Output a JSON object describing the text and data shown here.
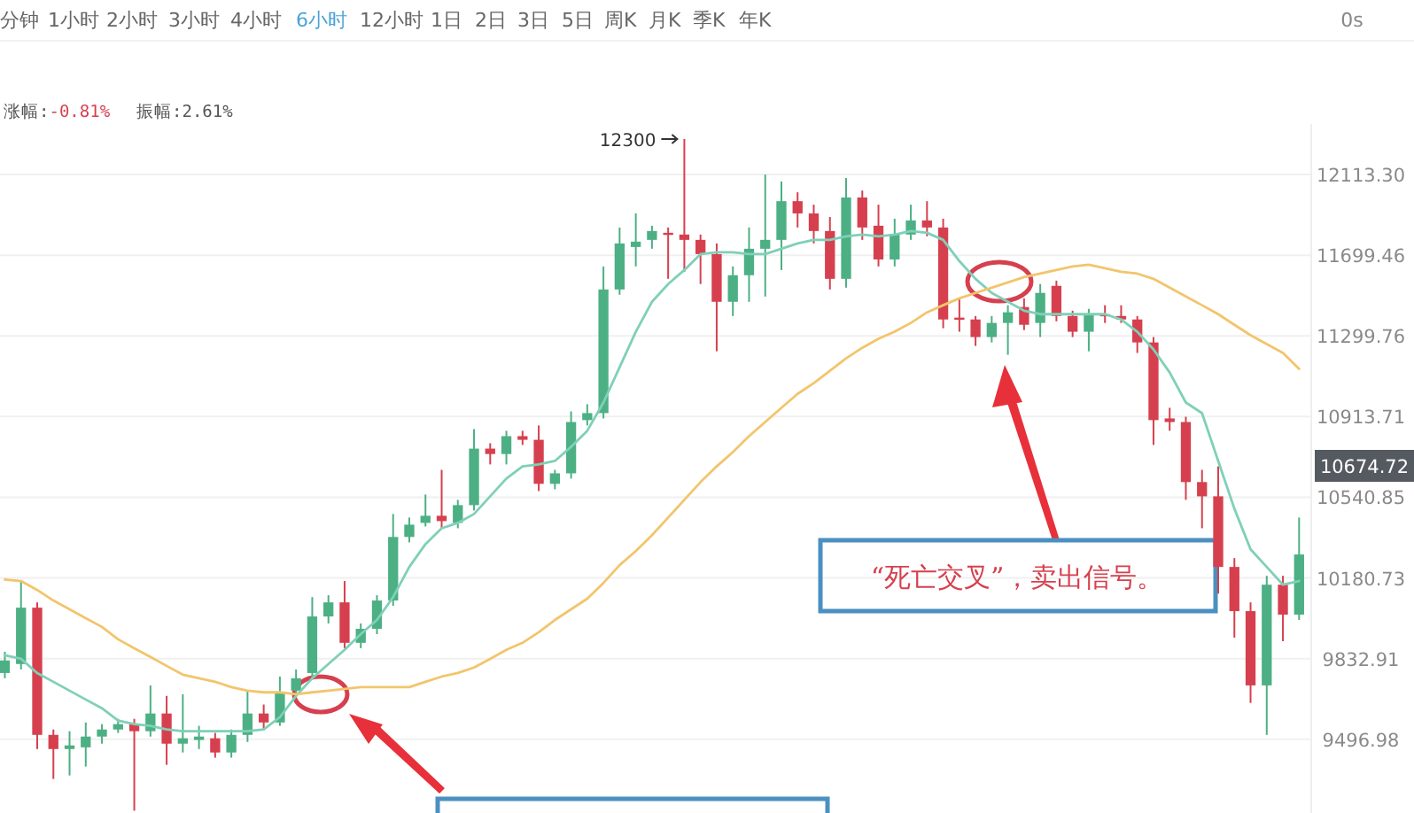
{
  "chart_data": {
    "type": "candlestick",
    "categories": [
      null,
      null,
      null,
      null,
      null,
      null,
      null,
      null,
      null,
      null,
      null,
      null,
      null,
      null,
      null,
      null,
      null,
      null,
      null,
      null,
      null,
      null,
      null,
      null,
      null,
      null,
      null,
      null,
      null,
      null,
      null,
      null,
      null,
      null,
      null,
      null,
      null,
      null,
      null,
      null,
      null,
      null,
      null,
      null,
      null,
      null,
      null,
      null,
      null,
      null,
      null,
      null,
      null,
      null,
      null,
      null,
      null,
      null,
      null,
      null,
      null,
      null,
      null,
      null,
      null,
      null,
      null,
      null,
      null,
      null,
      null,
      null,
      null,
      null,
      null,
      null,
      null,
      null,
      null,
      null,
      null
    ],
    "ohlc": [
      [
        9772,
        9862,
        9750,
        9825
      ],
      [
        9810,
        10167,
        9787,
        10051
      ],
      [
        10051,
        10074,
        9457,
        9515
      ],
      [
        9515,
        9537,
        9336,
        9457
      ],
      [
        9457,
        9530,
        9350,
        9472
      ],
      [
        9464,
        9566,
        9386,
        9508
      ],
      [
        9508,
        9559,
        9479,
        9537
      ],
      [
        9537,
        9581,
        9523,
        9559
      ],
      [
        9559,
        9581,
        9209,
        9530
      ],
      [
        9530,
        9720,
        9508,
        9603
      ],
      [
        9603,
        9676,
        9393,
        9479
      ],
      [
        9479,
        9683,
        9443,
        9501
      ],
      [
        9494,
        9552,
        9457,
        9508
      ],
      [
        9501,
        9523,
        9422,
        9443
      ],
      [
        9443,
        9537,
        9422,
        9515
      ],
      [
        9515,
        9698,
        9486,
        9603
      ],
      [
        9603,
        9640,
        9537,
        9566
      ],
      [
        9566,
        9757,
        9552,
        9691
      ],
      [
        9698,
        9787,
        9676,
        9750
      ],
      [
        9772,
        10097,
        9750,
        10013
      ],
      [
        10013,
        10105,
        9983,
        10074
      ],
      [
        10074,
        10167,
        9877,
        9900
      ],
      [
        9900,
        9983,
        9877,
        9960
      ],
      [
        9960,
        10105,
        9937,
        10082
      ],
      [
        10082,
        10465,
        10059,
        10362
      ],
      [
        10362,
        10449,
        10338,
        10417
      ],
      [
        10425,
        10553,
        10409,
        10457
      ],
      [
        10457,
        10666,
        10401,
        10433
      ],
      [
        10425,
        10529,
        10401,
        10505
      ],
      [
        10505,
        10855,
        10481,
        10764
      ],
      [
        10764,
        10789,
        10691,
        10739
      ],
      [
        10739,
        10847,
        10691,
        10822
      ],
      [
        10822,
        10847,
        10781,
        10805
      ],
      [
        10805,
        10872,
        10569,
        10602
      ],
      [
        10602,
        10666,
        10577,
        10650
      ],
      [
        10650,
        10938,
        10626,
        10888
      ],
      [
        10897,
        10972,
        10872,
        10930
      ],
      [
        10930,
        11643,
        10905,
        11528
      ],
      [
        11528,
        11840,
        11502,
        11759
      ],
      [
        11741,
        11912,
        11643,
        11768
      ],
      [
        11777,
        11849,
        11732,
        11822
      ],
      [
        11813,
        11840,
        11581,
        11804
      ],
      [
        11804,
        12300,
        11616,
        11777
      ],
      [
        11777,
        11804,
        11555,
        11705
      ],
      [
        11705,
        11759,
        11225,
        11467
      ],
      [
        11467,
        11643,
        11397,
        11599
      ],
      [
        11599,
        11840,
        11467,
        11732
      ],
      [
        11732,
        12113,
        11493,
        11777
      ],
      [
        11777,
        12077,
        11625,
        11975
      ],
      [
        11975,
        12021,
        11840,
        11912
      ],
      [
        11912,
        11957,
        11759,
        11822
      ],
      [
        11822,
        11894,
        11528,
        11581
      ],
      [
        11581,
        12095,
        11537,
        11994
      ],
      [
        11994,
        12030,
        11777,
        11840
      ],
      [
        11849,
        11957,
        11643,
        11678
      ],
      [
        11678,
        11885,
        11643,
        11804
      ],
      [
        11804,
        11957,
        11777,
        11876
      ],
      [
        11876,
        11975,
        11795,
        11840
      ],
      [
        11840,
        11885,
        11337,
        11380
      ],
      [
        11389,
        11484,
        11320,
        11380
      ],
      [
        11380,
        11397,
        11251,
        11294
      ],
      [
        11294,
        11397,
        11268,
        11363
      ],
      [
        11363,
        11450,
        11208,
        11415
      ],
      [
        11441,
        11484,
        11328,
        11354
      ],
      [
        11363,
        11555,
        11294,
        11511
      ],
      [
        11546,
        11572,
        11371,
        11397
      ],
      [
        11397,
        11423,
        11294,
        11320
      ],
      [
        11320,
        11432,
        11225,
        11406
      ],
      [
        11406,
        11450,
        11363,
        11397
      ],
      [
        11397,
        11450,
        11363,
        11380
      ],
      [
        11380,
        11397,
        11217,
        11268
      ],
      [
        11268,
        11294,
        10781,
        10897
      ],
      [
        10905,
        10955,
        10847,
        10888
      ],
      [
        10888,
        10913,
        10529,
        10610
      ],
      [
        10610,
        10666,
        10401,
        10545
      ],
      [
        10545,
        10682,
        10112,
        10229
      ],
      [
        10229,
        10268,
        9922,
        10036
      ],
      [
        10036,
        10074,
        9647,
        9720
      ],
      [
        9720,
        10190,
        9515,
        10151
      ],
      [
        10151,
        10190,
        9907,
        10021
      ],
      [
        10021,
        10449,
        9998,
        10284
      ]
    ],
    "colors": [
      "#4cb084",
      "#4cb084",
      "#d6404e",
      "#d6404e",
      "#4cb084",
      "#4cb084",
      "#4cb084",
      "#4cb084",
      "#d6404e",
      "#4cb084",
      "#d6404e",
      "#4cb084",
      "#4cb084",
      "#d6404e",
      "#4cb084",
      "#4cb084",
      "#d6404e",
      "#4cb084",
      "#4cb084",
      "#4cb084",
      "#4cb084",
      "#d6404e",
      "#4cb084",
      "#4cb084",
      "#4cb084",
      "#4cb084",
      "#4cb084",
      "#d6404e",
      "#4cb084",
      "#4cb084",
      "#d6404e",
      "#4cb084",
      "#d6404e",
      "#d6404e",
      "#4cb084",
      "#4cb084",
      "#4cb084",
      "#4cb084",
      "#4cb084",
      "#4cb084",
      "#4cb084",
      "#d6404e",
      "#d6404e",
      "#d6404e",
      "#d6404e",
      "#4cb084",
      "#4cb084",
      "#4cb084",
      "#4cb084",
      "#d6404e",
      "#d6404e",
      "#d6404e",
      "#4cb084",
      "#d6404e",
      "#d6404e",
      "#4cb084",
      "#4cb084",
      "#d6404e",
      "#d6404e",
      "#d6404e",
      "#d6404e",
      "#4cb084",
      "#4cb084",
      "#d6404e",
      "#4cb084",
      "#d6404e",
      "#d6404e",
      "#4cb084",
      "#d6404e",
      "#d6404e",
      "#d6404e",
      "#d6404e",
      "#d6404e",
      "#d6404e",
      "#d6404e",
      "#d6404e",
      "#d6404e",
      "#d6404e",
      "#4cb084",
      "#d6404e",
      "#4cb084"
    ],
    "series": [
      {
        "type": "line",
        "color": "#7fd0b8",
        "values": [
          9847,
          9832,
          9772,
          9735,
          9698,
          9661,
          9625,
          9574,
          9559,
          9552,
          9537,
          9530,
          9530,
          9530,
          9530,
          9530,
          9537,
          9588,
          9676,
          9750,
          9810,
          9870,
          9937,
          9998,
          10097,
          10229,
          10330,
          10401,
          10425,
          10465,
          10545,
          10626,
          10682,
          10691,
          10707,
          10772,
          10847,
          10980,
          11148,
          11320,
          11467,
          11555,
          11625,
          11705,
          11714,
          11714,
          11705,
          11705,
          11732,
          11759,
          11777,
          11777,
          11795,
          11804,
          11795,
          11804,
          11822,
          11813,
          11777,
          11670,
          11581,
          11511,
          11467,
          11423,
          11406,
          11406,
          11406,
          11406,
          11406,
          11380,
          11320,
          11234,
          11123,
          10980,
          10930,
          10707,
          10489,
          10307,
          10229,
          10151,
          10167
        ]
      },
      {
        "type": "line",
        "color": "#f2c56c",
        "values": [
          10174,
          10167,
          10128,
          10082,
          10044,
          10006,
          9968,
          9915,
          9877,
          9840,
          9802,
          9765,
          9750,
          9735,
          9713,
          9698,
          9691,
          9691,
          9683,
          9691,
          9698,
          9705,
          9713,
          9713,
          9713,
          9713,
          9735,
          9757,
          9772,
          9795,
          9832,
          9870,
          9900,
          9945,
          9998,
          10044,
          10090,
          10159,
          10237,
          10299,
          10370,
          10449,
          10529,
          10610,
          10682,
          10748,
          10822,
          10888,
          10955,
          11021,
          11072,
          11131,
          11191,
          11242,
          11286,
          11320,
          11363,
          11415,
          11450,
          11484,
          11511,
          11537,
          11563,
          11590,
          11607,
          11625,
          11643,
          11652,
          11634,
          11616,
          11607,
          11581,
          11537,
          11493,
          11450,
          11406,
          11354,
          11303,
          11260,
          11217,
          11140
        ]
      }
    ],
    "log": "y",
    "ylim": [
      9200,
      12380
    ],
    "yticks": [
      {
        "value": 12113.3,
        "label": "12113.30"
      },
      11699.46,
      11299.76,
      10913.71,
      10540.85,
      10180.73,
      9832.91,
      9496.98
    ],
    "grid": "y",
    "annotations": [
      "分钟",
      "1小时",
      "2小时",
      "3小时",
      "4小时",
      "6小时",
      "12小时",
      "1日",
      "2日",
      "3日",
      "5日",
      "周K",
      "月K",
      "季K",
      "年K",
      "0s",
      "涨幅:-0.81%",
      "振幅:2.61%",
      "“死亡交叉”，卖出信号。",
      "12300",
      "10674.72"
    ]
  }
}
